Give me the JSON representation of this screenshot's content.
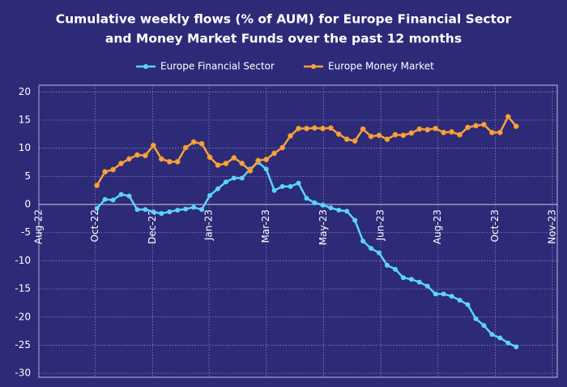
{
  "chart_data": {
    "type": "line",
    "title": [
      "Cumulative weekly flows (% of AUM) for Europe Financial Sector",
      "and Money Market Funds over the past 12 months"
    ],
    "x": [
      0,
      1,
      2,
      3,
      4,
      5,
      6,
      7,
      8,
      9,
      10,
      11,
      12,
      13,
      14,
      15,
      16,
      17,
      18,
      19,
      20,
      21,
      22,
      23,
      24,
      25,
      26,
      27,
      28,
      29,
      30,
      31,
      32,
      33,
      34,
      35,
      36,
      37,
      38,
      39,
      40,
      41,
      42,
      43,
      44,
      45,
      46,
      47,
      48,
      49,
      50,
      51,
      52
    ],
    "series": [
      {
        "name": "Europe Financial Sector",
        "color": "#5bd4f7",
        "values": [
          -0.7,
          0.9,
          0.8,
          1.8,
          1.5,
          -0.9,
          -0.9,
          -1.3,
          -1.6,
          -1.3,
          -1.0,
          -0.8,
          -0.5,
          -0.9,
          1.6,
          2.8,
          4.0,
          4.7,
          4.7,
          6.3,
          7.5,
          6.3,
          2.5,
          3.2,
          3.2,
          3.8,
          1.1,
          0.3,
          -0.1,
          -0.6,
          -1.0,
          -1.2,
          -2.8,
          -6.5,
          -7.8,
          -8.6,
          -10.8,
          -11.5,
          -13.0,
          -13.3,
          -13.8,
          -14.5,
          -15.9,
          -15.9,
          -16.3,
          -17.0,
          -17.8,
          -20.3,
          -21.5,
          -23.1,
          -23.7,
          -24.6,
          -25.3
        ]
      },
      {
        "name": "Europe Money Market",
        "color": "#f7a442",
        "values": [
          3.4,
          5.8,
          6.2,
          7.3,
          8.1,
          8.8,
          8.7,
          10.5,
          8.1,
          7.6,
          7.6,
          10.1,
          11.1,
          10.8,
          8.4,
          7.0,
          7.3,
          8.3,
          7.3,
          6.0,
          7.8,
          8.0,
          9.1,
          10.1,
          12.2,
          13.5,
          13.5,
          13.6,
          13.5,
          13.6,
          12.5,
          11.6,
          11.3,
          13.4,
          12.1,
          12.3,
          11.6,
          12.4,
          12.3,
          12.7,
          13.4,
          13.3,
          13.5,
          12.8,
          12.9,
          12.4,
          13.7,
          14.0,
          14.2,
          12.8,
          12.8,
          15.6,
          13.9
        ]
      }
    ],
    "xlim": [
      -7.2,
      57.1
    ],
    "xticks": [
      {
        "value": -7.2,
        "label": "Aug-22"
      },
      {
        "value": -0.2,
        "label": "Oct-22"
      },
      {
        "value": 6.9,
        "label": "Dec-22"
      },
      {
        "value": 13.9,
        "label": "Jan-23"
      },
      {
        "value": 21.0,
        "label": "Mar-23"
      },
      {
        "value": 28.1,
        "label": "May-23"
      },
      {
        "value": 35.2,
        "label": "Jun-23"
      },
      {
        "value": 42.3,
        "label": "Aug-23"
      },
      {
        "value": 49.4,
        "label": "Oct-23"
      },
      {
        "value": 56.5,
        "label": "Nov-23"
      }
    ],
    "ylim": [
      -30.7,
      21.2
    ],
    "yticks": [
      20,
      15,
      10,
      5,
      0,
      -5,
      -10,
      -15,
      -20,
      -25,
      -30
    ],
    "grid": true,
    "legend": "top"
  }
}
